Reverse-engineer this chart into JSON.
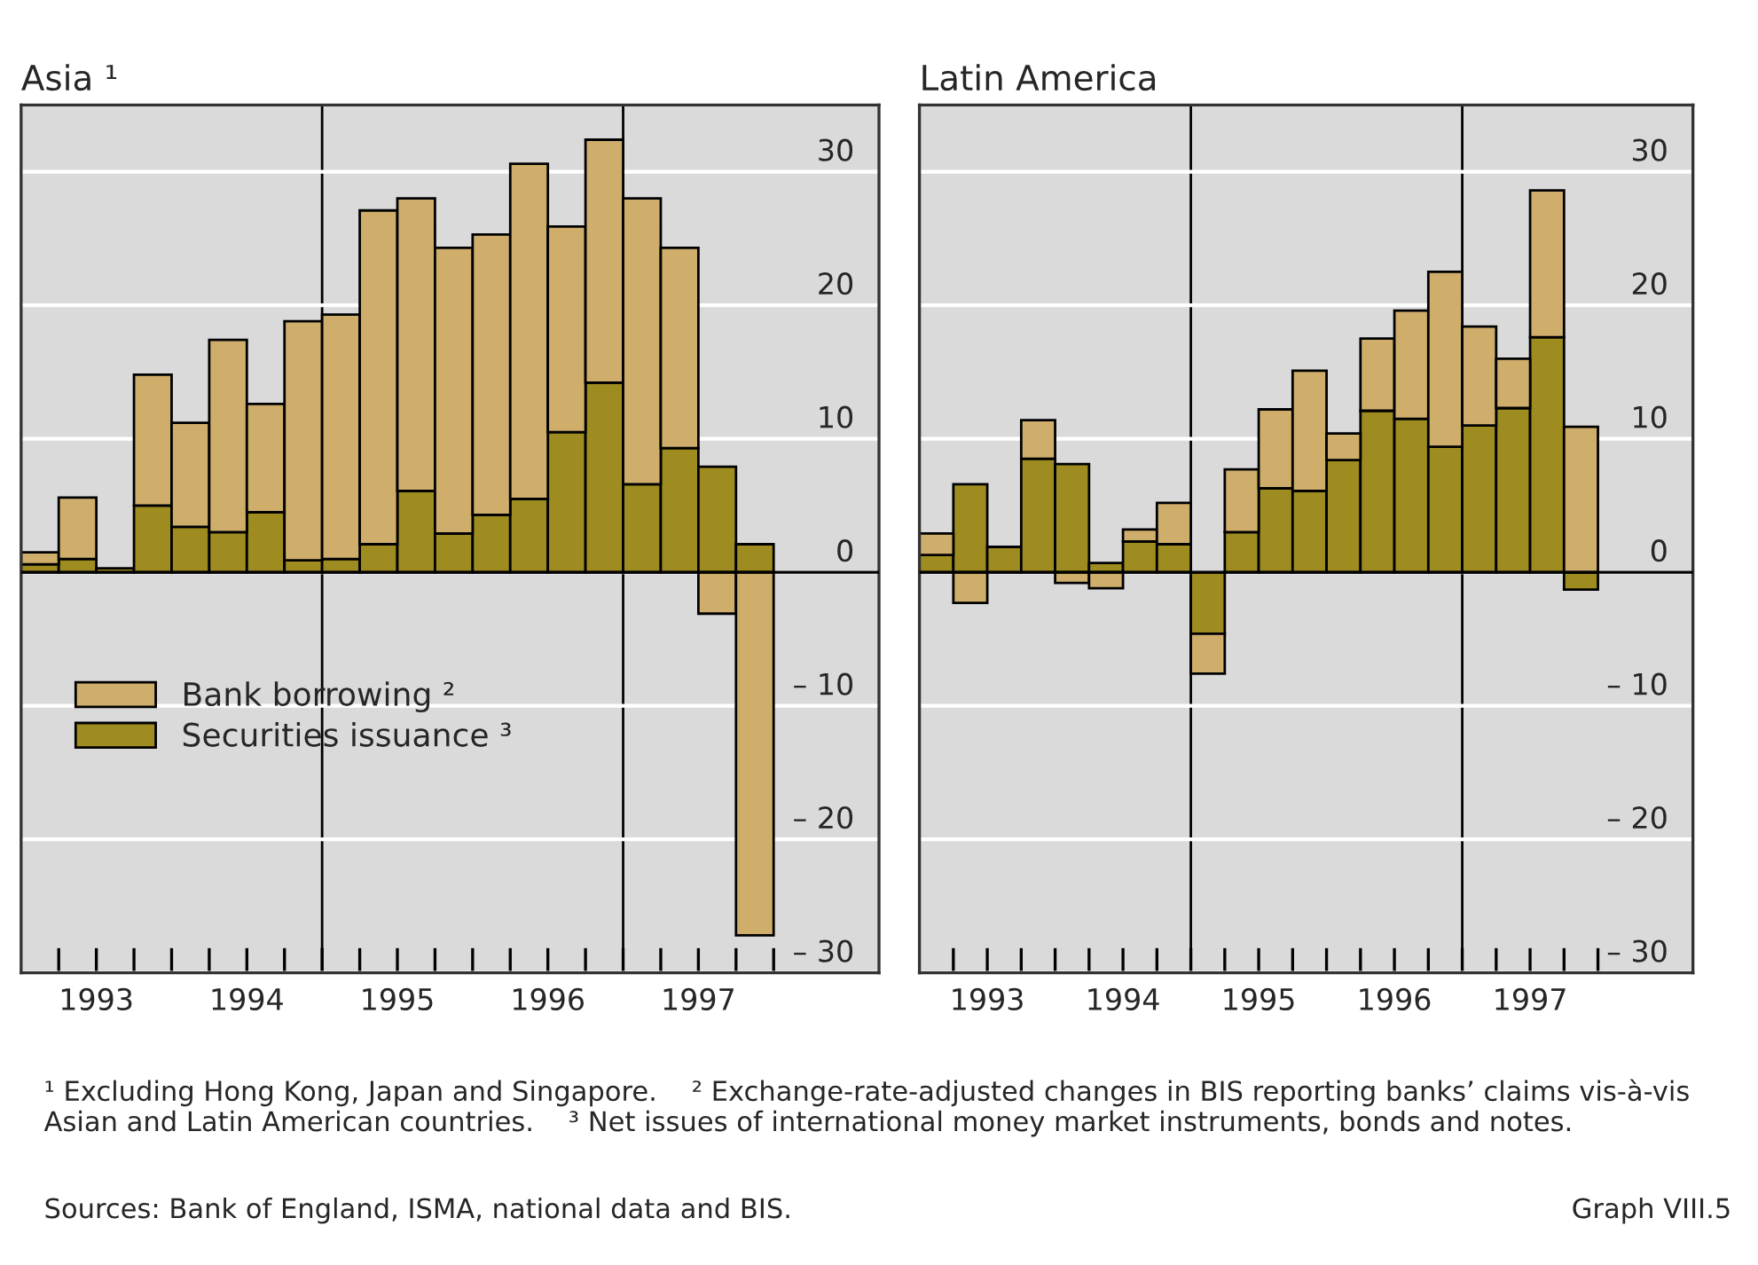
{
  "chart_data": [
    {
      "type": "bar",
      "title": "Asia ¹",
      "stacked": true,
      "legend": "bottom left",
      "grid": "y",
      "x": [
        1993.125,
        1993.375,
        1993.625,
        1993.875,
        1994.125,
        1994.375,
        1994.625,
        1994.875,
        1995.125,
        1995.375,
        1995.625,
        1995.875,
        1996.125,
        1996.375,
        1996.625,
        1996.875,
        1997.125,
        1997.375,
        1997.625,
        1997.875
      ],
      "series": [
        {
          "name": "Securities issuance ³",
          "color": "#9e8c20",
          "values": [
            0.6,
            1.0,
            0.3,
            5.0,
            3.4,
            3.0,
            4.5,
            0.9,
            1.0,
            2.1,
            6.1,
            2.9,
            4.3,
            5.5,
            10.5,
            14.2,
            6.6,
            9.3,
            7.9,
            2.1
          ]
        },
        {
          "name": "Bank borrowing ²",
          "color": "#cfae6c",
          "values": [
            0.9,
            4.6,
            0,
            9.8,
            7.8,
            14.4,
            8.1,
            17.9,
            18.3,
            25.0,
            21.9,
            21.4,
            21.0,
            25.1,
            15.4,
            18.2,
            21.4,
            15.0,
            -3.1,
            -27.2
          ]
        }
      ],
      "xlim": [
        1993,
        1998.7
      ],
      "ylim": [
        -30,
        35
      ],
      "xticks": [
        {
          "value": 1993.25,
          "label": null
        },
        {
          "value": 1993.5,
          "label": "1993"
        },
        {
          "value": 1993.75,
          "label": null
        },
        {
          "value": 1994,
          "label": null
        },
        {
          "value": 1994.25,
          "label": null
        },
        {
          "value": 1994.5,
          "label": "1994"
        },
        {
          "value": 1994.75,
          "label": null
        },
        {
          "value": 1995,
          "label": null
        },
        {
          "value": 1995.25,
          "label": null
        },
        {
          "value": 1995.5,
          "label": "1995"
        },
        {
          "value": 1995.75,
          "label": null
        },
        {
          "value": 1996,
          "label": null
        },
        {
          "value": 1996.25,
          "label": null
        },
        {
          "value": 1996.5,
          "label": "1996"
        },
        {
          "value": 1996.75,
          "label": null
        },
        {
          "value": 1997,
          "label": null
        },
        {
          "value": 1997.25,
          "label": null
        },
        {
          "value": 1997.5,
          "label": "1997"
        },
        {
          "value": 1997.75,
          "label": null
        },
        {
          "value": 1998,
          "label": null
        }
      ],
      "yticks": [
        {
          "value": -30,
          "label": "– 30"
        },
        {
          "value": -20,
          "label": "– 20"
        },
        {
          "value": -10,
          "label": "– 10"
        },
        0,
        10,
        20,
        30
      ],
      "ref_lines": [
        {
          "axis": "x",
          "value": 1995
        },
        {
          "axis": "x",
          "value": 1997
        }
      ],
      "annotations": [
        "¹ Excluding Hong Kong, Japan and Singapore.    ² Exchange-rate-adjusted changes in BIS reporting banks’ claims vis-à-vis Asian and Latin American countries.    ³ Net issues of international money market instruments, bonds and notes.",
        "Sources: Bank of England, ISMA, national data and BIS.",
        "Graph VIII.5"
      ]
    },
    {
      "type": "bar",
      "title": "Latin America",
      "stacked": true,
      "grid": "y",
      "x": [
        1993.125,
        1993.375,
        1993.625,
        1993.875,
        1994.125,
        1994.375,
        1994.625,
        1994.875,
        1995.125,
        1995.375,
        1995.625,
        1995.875,
        1996.125,
        1996.375,
        1996.625,
        1996.875,
        1997.125,
        1997.375,
        1997.625,
        1997.875
      ],
      "series": [
        {
          "color": "#9e8c20",
          "values": [
            1.3,
            6.6,
            1.9,
            8.5,
            8.1,
            0.7,
            2.3,
            2.1,
            -4.6,
            3.0,
            6.3,
            6.1,
            8.4,
            12.1,
            11.5,
            9.4,
            11.0,
            12.3,
            17.6,
            -1.3
          ]
        },
        {
          "color": "#cfae6c",
          "values": [
            1.6,
            -2.3,
            0,
            2.9,
            -0.8,
            -1.2,
            0.9,
            3.1,
            -3.0,
            4.7,
            5.9,
            9.0,
            2.0,
            5.4,
            8.1,
            13.1,
            7.4,
            3.7,
            11.0,
            10.9
          ]
        }
      ],
      "xlim": [
        1993,
        1998.7
      ],
      "ylim": [
        -30,
        35
      ],
      "xticks": [
        {
          "value": 1993.25,
          "label": null
        },
        {
          "value": 1993.5,
          "label": "1993"
        },
        {
          "value": 1993.75,
          "label": null
        },
        {
          "value": 1994,
          "label": null
        },
        {
          "value": 1994.25,
          "label": null
        },
        {
          "value": 1994.5,
          "label": "1994"
        },
        {
          "value": 1994.75,
          "label": null
        },
        {
          "value": 1995,
          "label": null
        },
        {
          "value": 1995.25,
          "label": null
        },
        {
          "value": 1995.5,
          "label": "1995"
        },
        {
          "value": 1995.75,
          "label": null
        },
        {
          "value": 1996,
          "label": null
        },
        {
          "value": 1996.25,
          "label": null
        },
        {
          "value": 1996.5,
          "label": "1996"
        },
        {
          "value": 1996.75,
          "label": null
        },
        {
          "value": 1997,
          "label": null
        },
        {
          "value": 1997.25,
          "label": null
        },
        {
          "value": 1997.5,
          "label": "1997"
        },
        {
          "value": 1997.75,
          "label": null
        },
        {
          "value": 1998,
          "label": null
        }
      ],
      "yticks": [
        {
          "value": -30,
          "label": "– 30"
        },
        {
          "value": -20,
          "label": "– 20"
        },
        {
          "value": -10,
          "label": "– 10"
        },
        0,
        10,
        20,
        30
      ],
      "ref_lines": [
        {
          "axis": "x",
          "value": 1995
        },
        {
          "axis": "x",
          "value": 1997
        }
      ]
    }
  ]
}
